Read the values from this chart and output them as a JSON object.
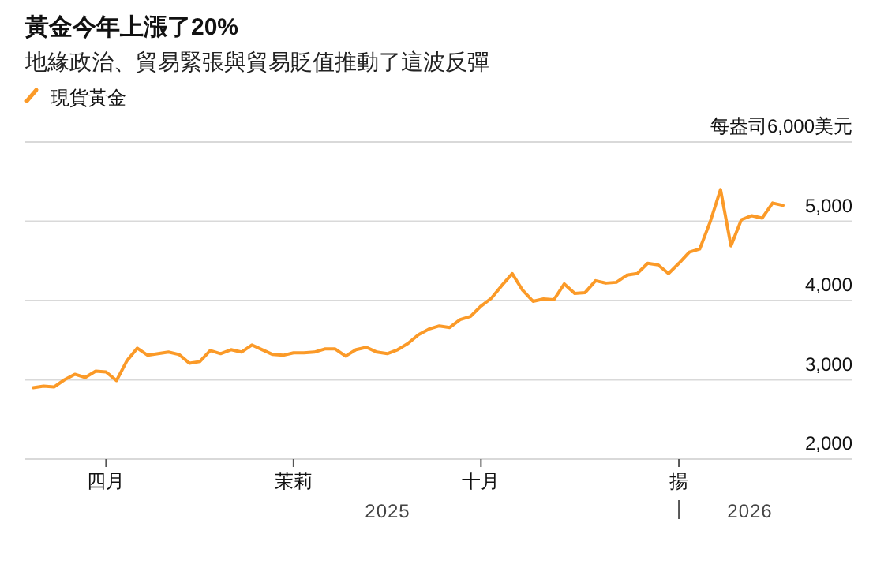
{
  "chart_data": {
    "type": "line",
    "title": "黃金今年上漲了20%",
    "subtitle": "地緣政治、貿易緊張與貿易貶值推動了這波反彈",
    "categories": [
      null,
      null,
      null,
      null,
      null,
      null,
      null,
      "四月",
      null,
      null,
      null,
      null,
      null,
      null,
      null,
      null,
      null,
      null,
      null,
      null,
      null,
      null,
      null,
      null,
      null,
      "茉莉",
      null,
      null,
      null,
      null,
      null,
      null,
      null,
      null,
      null,
      null,
      null,
      null,
      null,
      null,
      null,
      null,
      null,
      "十月",
      null,
      null,
      null,
      null,
      null,
      null,
      null,
      null,
      null,
      null,
      null,
      null,
      null,
      null,
      null,
      null,
      null,
      null,
      "揚",
      null,
      null,
      null,
      null,
      null,
      null,
      null,
      null,
      null,
      null
    ],
    "series": [
      {
        "name": "現貨黃金",
        "color": "#fb9a28",
        "values": [
          2900,
          2920,
          2910,
          3000,
          3070,
          3030,
          3110,
          3100,
          2990,
          3240,
          3400,
          3310,
          3330,
          3350,
          3320,
          3210,
          3230,
          3370,
          3330,
          3380,
          3350,
          3440,
          3380,
          3320,
          3310,
          3340,
          3340,
          3350,
          3390,
          3390,
          3300,
          3380,
          3410,
          3350,
          3330,
          3380,
          3460,
          3570,
          3640,
          3680,
          3660,
          3760,
          3800,
          3930,
          4030,
          4190,
          4340,
          4130,
          3990,
          4020,
          4010,
          4210,
          4090,
          4100,
          4250,
          4220,
          4230,
          4320,
          4340,
          4470,
          4450,
          4340,
          4470,
          4610,
          4650,
          4990,
          5400,
          4690,
          5020,
          5070,
          5040,
          5230,
          5200
        ]
      }
    ],
    "ylim": [
      2000,
      6000
    ],
    "yticks": [
      {
        "value": 2000,
        "label": "2,000"
      },
      {
        "value": 3000,
        "label": "3,000"
      },
      {
        "value": 4000,
        "label": "4,000"
      },
      {
        "value": 5000,
        "label": "5,000"
      },
      {
        "value": 6000,
        "label": "每盎司6,000美元"
      }
    ],
    "grid": "y",
    "legend": "top left",
    "annotations": [
      "2025",
      "2026"
    ]
  }
}
